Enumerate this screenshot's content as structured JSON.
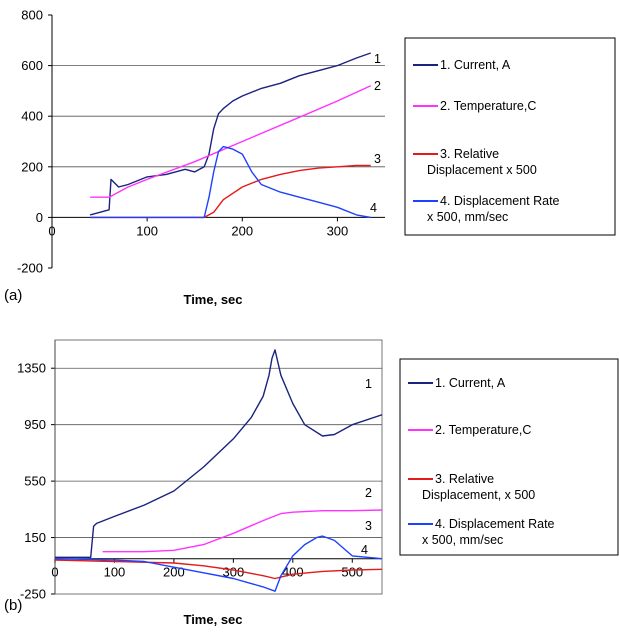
{
  "chart_data": [
    {
      "panel_label": "(a)",
      "type": "line",
      "xlabel": "Time, sec",
      "ylabel": "",
      "xlim": [
        0,
        350
      ],
      "ylim": [
        -200,
        800
      ],
      "xticks": [
        "0",
        "100",
        "200",
        "300"
      ],
      "yticks": [
        "-200",
        "0",
        "200",
        "400",
        "600",
        "800"
      ],
      "grid": "horizontal",
      "legend": "right",
      "series": [
        {
          "name": "1. Current, A",
          "label": "1",
          "color": "#1a237e",
          "x": [
            40,
            60,
            62,
            70,
            80,
            100,
            120,
            140,
            150,
            160,
            165,
            170,
            175,
            180,
            190,
            200,
            220,
            240,
            260,
            280,
            300,
            320,
            335
          ],
          "y": [
            10,
            30,
            150,
            120,
            130,
            160,
            170,
            190,
            180,
            200,
            250,
            350,
            410,
            430,
            460,
            480,
            510,
            530,
            560,
            580,
            600,
            630,
            650
          ]
        },
        {
          "name": "2. Temperature,C",
          "label": "2",
          "color": "#ff33ff",
          "x": [
            40,
            55,
            60,
            80,
            100,
            150,
            200,
            250,
            300,
            335
          ],
          "y": [
            80,
            80,
            80,
            120,
            150,
            220,
            300,
            380,
            460,
            520
          ]
        },
        {
          "name": "3. Relative Displacement x 500",
          "label": "3",
          "color": "#e41a1c",
          "x": [
            40,
            100,
            160,
            170,
            180,
            200,
            220,
            240,
            260,
            280,
            300,
            320,
            335
          ],
          "y": [
            0,
            0,
            0,
            20,
            70,
            120,
            150,
            170,
            185,
            195,
            200,
            205,
            205
          ]
        },
        {
          "name": "4. Displacement Rate x 500, mm/sec",
          "label": "4",
          "color": "#1e40ff",
          "x": [
            40,
            100,
            160,
            165,
            170,
            175,
            180,
            190,
            200,
            210,
            220,
            240,
            260,
            280,
            300,
            320,
            335
          ],
          "y": [
            0,
            0,
            0,
            80,
            180,
            260,
            280,
            270,
            250,
            180,
            130,
            100,
            80,
            60,
            40,
            10,
            0
          ]
        }
      ]
    },
    {
      "panel_label": "(b)",
      "type": "line",
      "xlabel": "Time, sec",
      "ylabel": "",
      "xlim": [
        0,
        550
      ],
      "ylim": [
        -250,
        1550
      ],
      "xticks": [
        "0",
        "100",
        "200",
        "300",
        "400",
        "500"
      ],
      "yticks": [
        "-250",
        "150",
        "550",
        "950",
        "1350"
      ],
      "grid": "horizontal",
      "legend": "right",
      "series": [
        {
          "name": "1. Current, A",
          "label": "1",
          "color": "#1a237e",
          "x": [
            0,
            60,
            65,
            70,
            100,
            150,
            200,
            250,
            300,
            330,
            350,
            360,
            365,
            370,
            380,
            400,
            420,
            450,
            470,
            500,
            550
          ],
          "y": [
            10,
            10,
            230,
            250,
            300,
            380,
            480,
            650,
            850,
            1000,
            1150,
            1300,
            1420,
            1480,
            1300,
            1100,
            950,
            870,
            880,
            950,
            1020
          ]
        },
        {
          "name": "2. Temperature,C",
          "label": "2",
          "color": "#ff33ff",
          "x": [
            80,
            150,
            200,
            250,
            300,
            350,
            380,
            400,
            450,
            500,
            550
          ],
          "y": [
            50,
            50,
            60,
            100,
            180,
            270,
            320,
            330,
            340,
            340,
            345
          ]
        },
        {
          "name": "3. Relative Displacement, x 500",
          "label": "3",
          "color": "#e41a1c",
          "x": [
            0,
            100,
            200,
            250,
            300,
            350,
            370,
            380,
            400,
            450,
            500,
            550
          ],
          "y": [
            -10,
            -20,
            -30,
            -50,
            -80,
            -120,
            -140,
            -130,
            -110,
            -90,
            -80,
            -75
          ]
        },
        {
          "name": "4. Displacement Rate x 500, mm/sec",
          "label": "4",
          "color": "#1e40ff",
          "x": [
            0,
            100,
            150,
            200,
            250,
            300,
            350,
            370,
            380,
            400,
            420,
            440,
            450,
            470,
            500,
            550
          ],
          "y": [
            0,
            -10,
            -20,
            -60,
            -100,
            -140,
            -200,
            -230,
            -120,
            20,
            100,
            150,
            160,
            130,
            20,
            0
          ]
        }
      ]
    }
  ]
}
